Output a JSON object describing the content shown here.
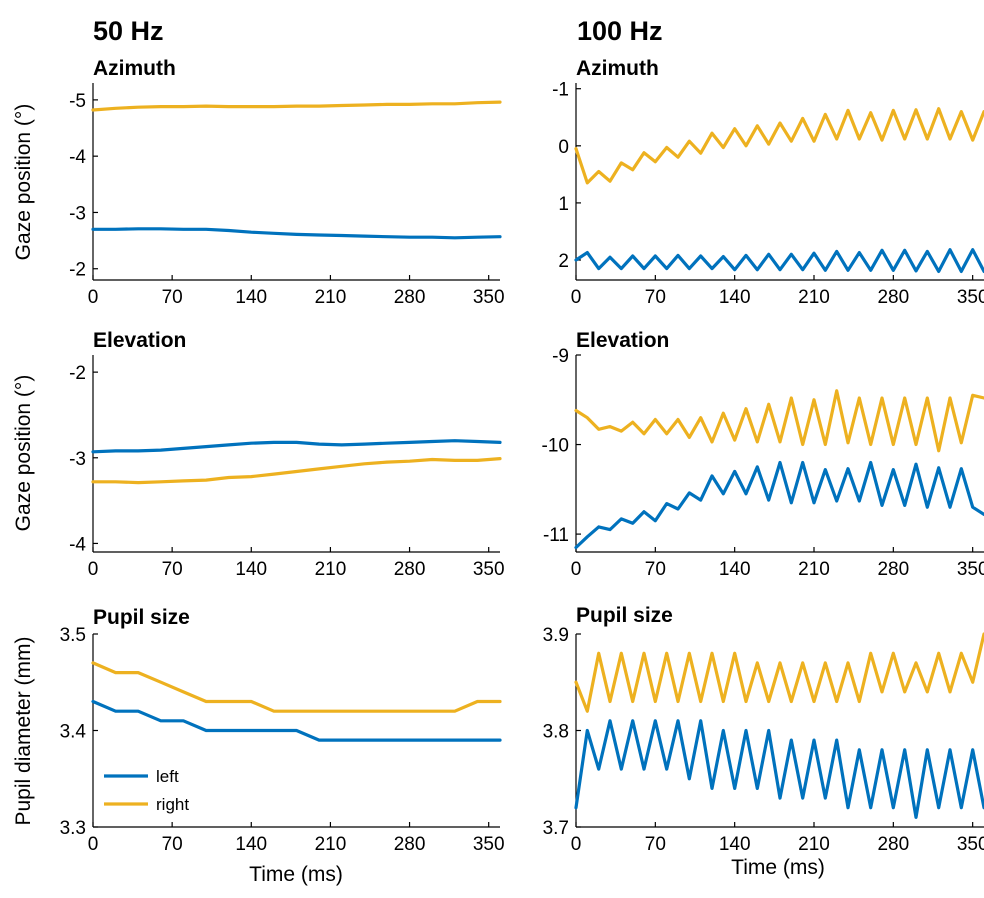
{
  "colors": {
    "left": "#0072BD",
    "right": "#EDB120"
  },
  "column_titles": [
    "50 Hz",
    "100 Hz"
  ],
  "x_axis_label": "Time (ms)",
  "legend": {
    "placement": "bottom-left",
    "entries": [
      "left",
      "right"
    ]
  },
  "chart_data": [
    {
      "type": "line",
      "title": "Azimuth",
      "column": "50 Hz",
      "ylabel": "Gaze position (°)",
      "xlim": [
        0,
        360
      ],
      "xticks": [
        0,
        70,
        140,
        210,
        280,
        350
      ],
      "ylim": [
        -5.3,
        -1.8
      ],
      "y_reversed": true,
      "yticks": [
        -5,
        -4,
        -3,
        -2
      ],
      "series": [
        {
          "name": "left",
          "x": [
            0,
            20,
            40,
            60,
            80,
            100,
            120,
            140,
            160,
            180,
            200,
            220,
            240,
            260,
            280,
            300,
            320,
            340,
            360
          ],
          "values": [
            -2.7,
            -2.7,
            -2.71,
            -2.71,
            -2.7,
            -2.7,
            -2.68,
            -2.65,
            -2.63,
            -2.61,
            -2.6,
            -2.59,
            -2.58,
            -2.57,
            -2.56,
            -2.56,
            -2.55,
            -2.56,
            -2.57
          ]
        },
        {
          "name": "right",
          "x": [
            0,
            20,
            40,
            60,
            80,
            100,
            120,
            140,
            160,
            180,
            200,
            220,
            240,
            260,
            280,
            300,
            320,
            340,
            360
          ],
          "values": [
            -4.82,
            -4.85,
            -4.87,
            -4.88,
            -4.88,
            -4.89,
            -4.88,
            -4.88,
            -4.88,
            -4.89,
            -4.89,
            -4.9,
            -4.91,
            -4.92,
            -4.92,
            -4.93,
            -4.93,
            -4.95,
            -4.96
          ]
        }
      ]
    },
    {
      "type": "line",
      "title": "Azimuth",
      "column": "100 Hz",
      "ylabel": "",
      "xlim": [
        0,
        360
      ],
      "xticks": [
        0,
        70,
        140,
        210,
        280,
        350
      ],
      "ylim": [
        -1.1,
        2.35
      ],
      "y_reversed": true,
      "yticks": [
        -1,
        0,
        1,
        2
      ],
      "series": [
        {
          "name": "left",
          "x": [
            0,
            10,
            20,
            30,
            40,
            50,
            60,
            70,
            80,
            90,
            100,
            110,
            120,
            130,
            140,
            150,
            160,
            170,
            180,
            190,
            200,
            210,
            220,
            230,
            240,
            250,
            260,
            270,
            280,
            290,
            300,
            310,
            320,
            330,
            340,
            350,
            360
          ],
          "values": [
            2.0,
            1.87,
            2.15,
            1.95,
            2.15,
            1.93,
            2.15,
            1.93,
            2.15,
            1.92,
            2.15,
            1.93,
            2.15,
            1.94,
            2.17,
            1.92,
            2.17,
            1.9,
            2.17,
            1.9,
            2.17,
            1.88,
            2.18,
            1.85,
            2.18,
            1.87,
            2.18,
            1.83,
            2.18,
            1.83,
            2.19,
            1.85,
            2.2,
            1.82,
            2.2,
            1.82,
            2.2
          ]
        },
        {
          "name": "right",
          "x": [
            0,
            10,
            20,
            30,
            40,
            50,
            60,
            70,
            80,
            90,
            100,
            110,
            120,
            130,
            140,
            150,
            160,
            170,
            180,
            190,
            200,
            210,
            220,
            230,
            240,
            250,
            260,
            270,
            280,
            290,
            300,
            310,
            320,
            330,
            340,
            350,
            360
          ],
          "values": [
            0.05,
            0.65,
            0.45,
            0.62,
            0.3,
            0.42,
            0.12,
            0.28,
            0.03,
            0.2,
            -0.08,
            0.13,
            -0.22,
            0.03,
            -0.3,
            0.0,
            -0.35,
            -0.03,
            -0.4,
            -0.08,
            -0.48,
            -0.08,
            -0.55,
            -0.12,
            -0.62,
            -0.12,
            -0.58,
            -0.1,
            -0.62,
            -0.12,
            -0.63,
            -0.12,
            -0.65,
            -0.12,
            -0.6,
            -0.1,
            -0.6
          ]
        }
      ]
    },
    {
      "type": "line",
      "title": "Elevation",
      "column": "50 Hz",
      "ylabel": "Gaze position (°)",
      "xlim": [
        0,
        360
      ],
      "xticks": [
        0,
        70,
        140,
        210,
        280,
        350
      ],
      "ylim": [
        -4.1,
        -1.8
      ],
      "y_reversed": false,
      "yticks": [
        -4,
        -3,
        -2
      ],
      "series": [
        {
          "name": "left",
          "x": [
            0,
            20,
            40,
            60,
            80,
            100,
            120,
            140,
            160,
            180,
            200,
            220,
            240,
            260,
            280,
            300,
            320,
            340,
            360
          ],
          "values": [
            -2.93,
            -2.92,
            -2.92,
            -2.91,
            -2.89,
            -2.87,
            -2.85,
            -2.83,
            -2.82,
            -2.82,
            -2.84,
            -2.85,
            -2.84,
            -2.83,
            -2.82,
            -2.81,
            -2.8,
            -2.81,
            -2.82
          ]
        },
        {
          "name": "right",
          "x": [
            0,
            20,
            40,
            60,
            80,
            100,
            120,
            140,
            160,
            180,
            200,
            220,
            240,
            260,
            280,
            300,
            320,
            340,
            360
          ],
          "values": [
            -3.28,
            -3.28,
            -3.29,
            -3.28,
            -3.27,
            -3.26,
            -3.23,
            -3.22,
            -3.19,
            -3.16,
            -3.13,
            -3.1,
            -3.07,
            -3.05,
            -3.04,
            -3.02,
            -3.03,
            -3.03,
            -3.01
          ]
        }
      ]
    },
    {
      "type": "line",
      "title": "Elevation",
      "column": "100 Hz",
      "ylabel": "",
      "xlim": [
        0,
        360
      ],
      "xticks": [
        0,
        70,
        140,
        210,
        280,
        350
      ],
      "ylim": [
        -11.2,
        -9.0
      ],
      "y_reversed": false,
      "yticks": [
        -11,
        -10,
        -9
      ],
      "series": [
        {
          "name": "left",
          "x": [
            0,
            10,
            20,
            30,
            40,
            50,
            60,
            70,
            80,
            90,
            100,
            110,
            120,
            130,
            140,
            150,
            160,
            170,
            180,
            190,
            200,
            210,
            220,
            230,
            240,
            250,
            260,
            270,
            280,
            290,
            300,
            310,
            320,
            330,
            340,
            350,
            360
          ],
          "values": [
            -11.15,
            -11.03,
            -10.92,
            -10.95,
            -10.83,
            -10.88,
            -10.75,
            -10.85,
            -10.66,
            -10.72,
            -10.54,
            -10.62,
            -10.35,
            -10.55,
            -10.3,
            -10.55,
            -10.25,
            -10.62,
            -10.2,
            -10.65,
            -10.2,
            -10.65,
            -10.28,
            -10.63,
            -10.27,
            -10.63,
            -10.2,
            -10.68,
            -10.28,
            -10.68,
            -10.22,
            -10.7,
            -10.26,
            -10.7,
            -10.27,
            -10.7,
            -10.78
          ]
        },
        {
          "name": "right",
          "x": [
            0,
            10,
            20,
            30,
            40,
            50,
            60,
            70,
            80,
            90,
            100,
            110,
            120,
            130,
            140,
            150,
            160,
            170,
            180,
            190,
            200,
            210,
            220,
            230,
            240,
            250,
            260,
            270,
            280,
            290,
            300,
            310,
            320,
            330,
            340,
            350,
            360
          ],
          "values": [
            -9.62,
            -9.7,
            -9.83,
            -9.8,
            -9.85,
            -9.75,
            -9.88,
            -9.72,
            -9.88,
            -9.72,
            -9.92,
            -9.7,
            -9.97,
            -9.65,
            -9.95,
            -9.6,
            -9.97,
            -9.55,
            -9.97,
            -9.48,
            -10.0,
            -9.5,
            -10.0,
            -9.4,
            -9.98,
            -9.48,
            -10.0,
            -9.48,
            -10.0,
            -9.48,
            -10.0,
            -9.48,
            -10.07,
            -9.48,
            -9.98,
            -9.45,
            -9.48
          ]
        }
      ]
    },
    {
      "type": "line",
      "title": "Pupil size",
      "column": "50 Hz",
      "ylabel": "Pupil diameter (mm)",
      "xlim": [
        0,
        360
      ],
      "xticks": [
        0,
        70,
        140,
        210,
        280,
        350
      ],
      "ylim": [
        3.3,
        3.5
      ],
      "y_reversed": false,
      "yticks": [
        3.3,
        3.4,
        3.5
      ],
      "series": [
        {
          "name": "left",
          "x": [
            0,
            20,
            40,
            60,
            80,
            100,
            120,
            140,
            160,
            180,
            200,
            220,
            240,
            260,
            280,
            300,
            320,
            340,
            360
          ],
          "values": [
            3.43,
            3.42,
            3.42,
            3.41,
            3.41,
            3.4,
            3.4,
            3.4,
            3.4,
            3.4,
            3.39,
            3.39,
            3.39,
            3.39,
            3.39,
            3.39,
            3.39,
            3.39,
            3.39
          ]
        },
        {
          "name": "right",
          "x": [
            0,
            20,
            40,
            60,
            80,
            100,
            120,
            140,
            160,
            180,
            200,
            220,
            240,
            260,
            280,
            300,
            320,
            340,
            360
          ],
          "values": [
            3.47,
            3.46,
            3.46,
            3.45,
            3.44,
            3.43,
            3.43,
            3.43,
            3.42,
            3.42,
            3.42,
            3.42,
            3.42,
            3.42,
            3.42,
            3.42,
            3.42,
            3.43,
            3.43
          ]
        }
      ]
    },
    {
      "type": "line",
      "title": "Pupil size",
      "column": "100 Hz",
      "ylabel": "",
      "xlim": [
        0,
        360
      ],
      "xticks": [
        0,
        70,
        140,
        210,
        280,
        350
      ],
      "ylim": [
        3.7,
        3.9
      ],
      "y_reversed": false,
      "yticks": [
        3.7,
        3.8,
        3.9
      ],
      "series": [
        {
          "name": "left",
          "x": [
            0,
            10,
            20,
            30,
            40,
            50,
            60,
            70,
            80,
            90,
            100,
            110,
            120,
            130,
            140,
            150,
            160,
            170,
            180,
            190,
            200,
            210,
            220,
            230,
            240,
            250,
            260,
            270,
            280,
            290,
            300,
            310,
            320,
            330,
            340,
            350,
            360
          ],
          "values": [
            3.72,
            3.8,
            3.76,
            3.81,
            3.76,
            3.81,
            3.76,
            3.81,
            3.76,
            3.81,
            3.75,
            3.81,
            3.74,
            3.8,
            3.74,
            3.8,
            3.74,
            3.8,
            3.73,
            3.79,
            3.73,
            3.79,
            3.73,
            3.79,
            3.72,
            3.78,
            3.72,
            3.78,
            3.72,
            3.78,
            3.71,
            3.78,
            3.72,
            3.78,
            3.72,
            3.78,
            3.72
          ]
        },
        {
          "name": "right",
          "x": [
            0,
            10,
            20,
            30,
            40,
            50,
            60,
            70,
            80,
            90,
            100,
            110,
            120,
            130,
            140,
            150,
            160,
            170,
            180,
            190,
            200,
            210,
            220,
            230,
            240,
            250,
            260,
            270,
            280,
            290,
            300,
            310,
            320,
            330,
            340,
            350,
            360
          ],
          "values": [
            3.85,
            3.82,
            3.88,
            3.83,
            3.88,
            3.83,
            3.88,
            3.83,
            3.88,
            3.83,
            3.88,
            3.83,
            3.88,
            3.83,
            3.88,
            3.83,
            3.87,
            3.83,
            3.87,
            3.83,
            3.87,
            3.83,
            3.87,
            3.83,
            3.87,
            3.83,
            3.88,
            3.84,
            3.88,
            3.84,
            3.87,
            3.84,
            3.88,
            3.84,
            3.88,
            3.85,
            3.9
          ]
        }
      ]
    }
  ]
}
